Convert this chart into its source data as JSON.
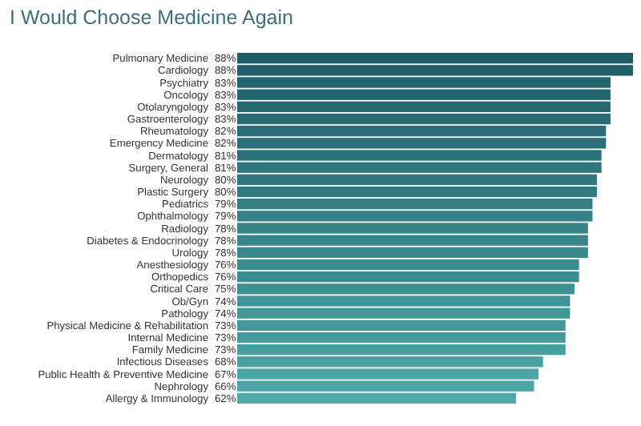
{
  "chart_data": {
    "type": "bar",
    "orientation": "horizontal",
    "title": "I Would Choose Medicine Again",
    "categories": [
      "Pulmonary Medicine",
      "Cardiology",
      "Psychiatry",
      "Oncology",
      "Otolaryngology",
      "Gastroenterology",
      "Rheumatology",
      "Emergency Medicine",
      "Dermatology",
      "Surgery, General",
      "Neurology",
      "Plastic Surgery",
      "Pediatrics",
      "Ophthalmology",
      "Radiology",
      "Diabetes & Endocrinology",
      "Urology",
      "Anesthesiology",
      "Orthopedics",
      "Critical Care",
      "Ob/Gyn",
      "Pathology",
      "Physical Medicine & Rehabilitation",
      "Internal Medicine",
      "Family Medicine",
      "Infectious Diseases",
      "Public Health & Preventive Medicine",
      "Nephrology",
      "Allergy & Immunology"
    ],
    "values": [
      88,
      88,
      83,
      83,
      83,
      83,
      82,
      82,
      81,
      81,
      80,
      80,
      79,
      79,
      78,
      78,
      78,
      76,
      76,
      75,
      74,
      74,
      73,
      73,
      73,
      68,
      67,
      66,
      62
    ],
    "value_labels": [
      "88%",
      "88%",
      "83%",
      "83%",
      "83%",
      "83%",
      "82%",
      "82%",
      "81%",
      "81%",
      "80%",
      "80%",
      "79%",
      "79%",
      "78%",
      "78%",
      "78%",
      "76%",
      "76%",
      "75%",
      "74%",
      "74%",
      "73%",
      "73%",
      "73%",
      "68%",
      "67%",
      "66%",
      "62%"
    ],
    "colors": [
      "#1f5c68",
      "#215f6a",
      "#22626d",
      "#24646f",
      "#266771",
      "#276a73",
      "#296d76",
      "#2b6f78",
      "#2c727a",
      "#2e757d",
      "#2f787f",
      "#317b81",
      "#337d83",
      "#348086",
      "#368388",
      "#38868a",
      "#39898d",
      "#3b8b8f",
      "#3d8e91",
      "#3e9193",
      "#409496",
      "#429798",
      "#43999a",
      "#459c9d",
      "#469f9f",
      "#48a2a1",
      "#4aa4a3",
      "#4ba7a6",
      "#4daaa8"
    ]
  }
}
